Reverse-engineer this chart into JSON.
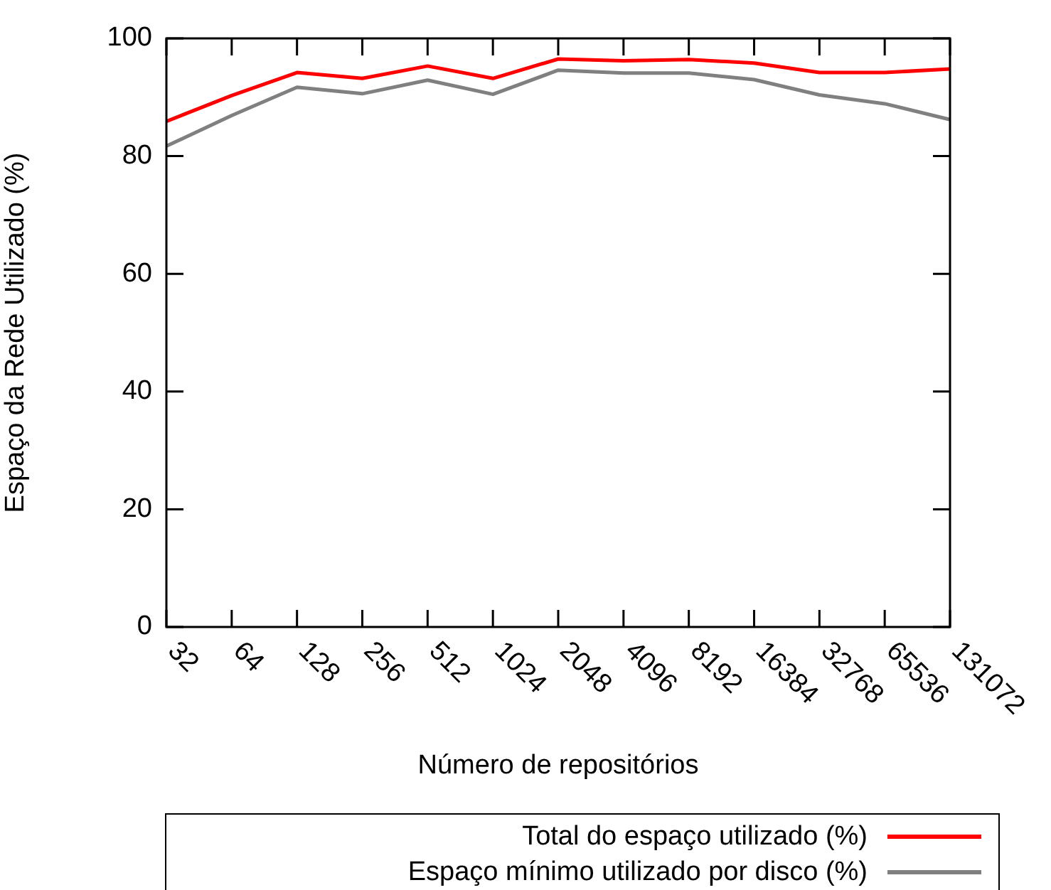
{
  "chart_data": {
    "type": "line",
    "xlabel": "Número de repositórios",
    "ylabel": "Espaço da Rede Utilizado (%)",
    "categories": [
      "32",
      "64",
      "128",
      "256",
      "512",
      "1024",
      "2048",
      "4096",
      "8192",
      "16384",
      "32768",
      "65536",
      "131072"
    ],
    "series": [
      {
        "name": "Total do espaço utilizado (%)",
        "color": "#ff0000",
        "values": [
          85.9,
          90.3,
          94.2,
          93.2,
          95.3,
          93.2,
          96.5,
          96.2,
          96.4,
          95.8,
          94.2,
          94.2,
          94.8
        ]
      },
      {
        "name": "Espaço mínimo utilizado por disco (%)",
        "color": "#808080",
        "values": [
          81.7,
          86.9,
          91.7,
          90.6,
          92.9,
          90.5,
          94.6,
          94.1,
          94.1,
          93.0,
          90.4,
          88.9,
          86.2
        ]
      }
    ],
    "ylim": [
      0,
      100
    ],
    "yticks": [
      0,
      20,
      40,
      60,
      80,
      100
    ],
    "grid": false,
    "legend": "bottom",
    "marker": "none",
    "line_style": "solid"
  }
}
